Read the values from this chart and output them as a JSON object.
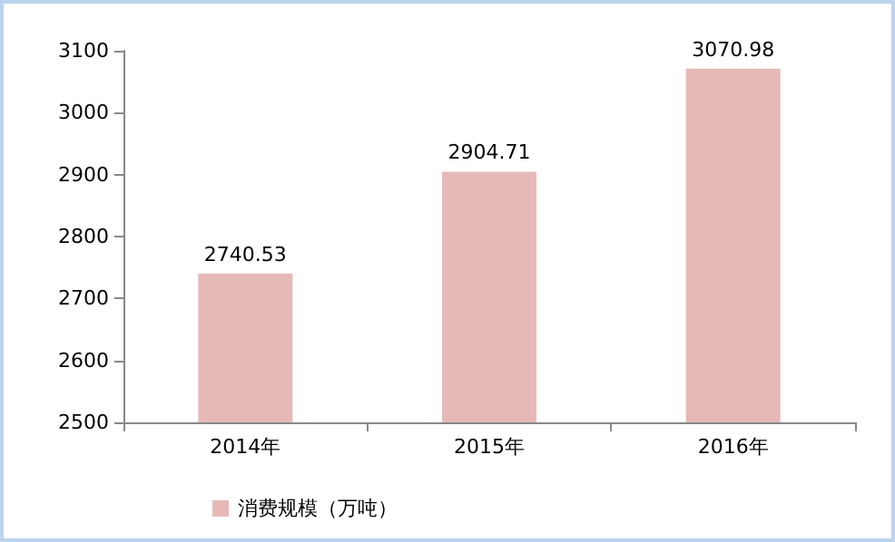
{
  "chart_data": {
    "type": "bar",
    "categories": [
      "2014年",
      "2015年",
      "2016年"
    ],
    "series": [
      {
        "name": "消费规模（万吨）",
        "color": "#e6b9b8",
        "values": [
          2740.53,
          2904.71,
          3070.98
        ]
      }
    ],
    "ylim": [
      2500,
      3100
    ],
    "yticks": [
      2500,
      2600,
      2700,
      2800,
      2900,
      3000,
      3100
    ],
    "grid": false,
    "legend": "bottom left",
    "data_labels": true
  }
}
